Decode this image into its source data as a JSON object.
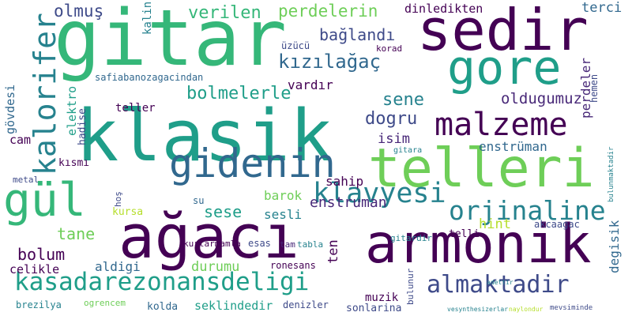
{
  "colors": {
    "background": "#ffffff",
    "purple": "#440154",
    "indigo": "#482878",
    "violet": "#3e4a89",
    "blue": "#31688e",
    "teal": "#26828e",
    "sea": "#1f9e89",
    "green": "#35b779",
    "lime": "#6ece58",
    "yellowgreen": "#b5de2b",
    "yellow": "#fde725"
  },
  "words": [
    "klasik",
    "gitar",
    "telleri",
    "sedir",
    "ağacı",
    "armonik",
    "gore",
    "gidenin",
    "gül",
    "malzeme",
    "kasadarezonansdeligi",
    "kızılağaç",
    "klavyesi",
    "orjinaline",
    "almaktadir",
    "kalorifer",
    "bolmelerle",
    "perdelerin",
    "verilen",
    "bağlandı",
    "olmuş",
    "dinledikten",
    "terci",
    "oldugumuz",
    "sene",
    "dogru",
    "enstrüman",
    "enstruman",
    "sese",
    "barok",
    "sesli",
    "bolum",
    "tane",
    "celikle",
    "aldigi",
    "durumu",
    "kurtarmamla",
    "hint",
    "akcaagac",
    "seklindedir",
    "sonlarina",
    "denizler",
    "muzik",
    "ten",
    "degisik",
    "kursa",
    "teller",
    "safiabanozagacindan",
    "gövdesi",
    "elektro",
    "hadise",
    "cam",
    "metal",
    "kısmı",
    "isim",
    "sahip",
    "vardır",
    "üzücü",
    "korad",
    "kalin",
    "perdeler",
    "hemen",
    "brezilya",
    "ogrencem",
    "kolda",
    "bulunur",
    "ronesans",
    "esas",
    "tabla",
    "tam",
    "gitara",
    "telli",
    "su",
    "gitardir",
    "hoş",
    "adettir",
    "bulunmaktadir",
    "mevsiminde",
    "vesynthesizerlar",
    "naylondur"
  ]
}
